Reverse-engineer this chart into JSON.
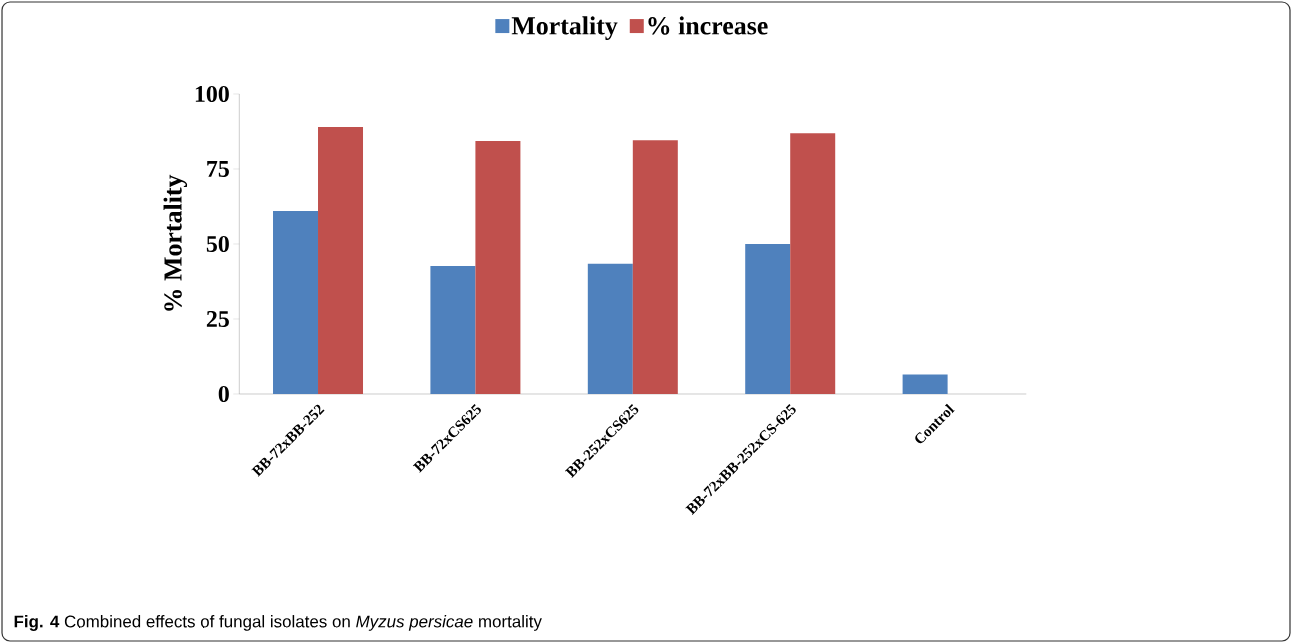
{
  "chart_data": {
    "type": "bar",
    "categories": [
      "BB-72xBB-252",
      "BB-72xCS625",
      "BB-252xCS625",
      "BB-72xBB-252xCS-625",
      "Control"
    ],
    "series": [
      {
        "name": "Mortality",
        "color": "#4f81bd",
        "values": [
          61,
          42.7,
          43.4,
          50,
          6.5
        ]
      },
      {
        "name": "% increase",
        "color": "#c0504d",
        "values": [
          89,
          84.3,
          84.6,
          86.9,
          null
        ]
      }
    ],
    "ylabel": "% Mortality",
    "ylim": [
      0,
      100
    ],
    "yticks": [
      0,
      25,
      50,
      75,
      100
    ],
    "legend": "top",
    "grid": false,
    "annotations": [
      "**Fig. 4** Combined effects of fungal isolates on *Myzus persicae* mortality"
    ]
  }
}
